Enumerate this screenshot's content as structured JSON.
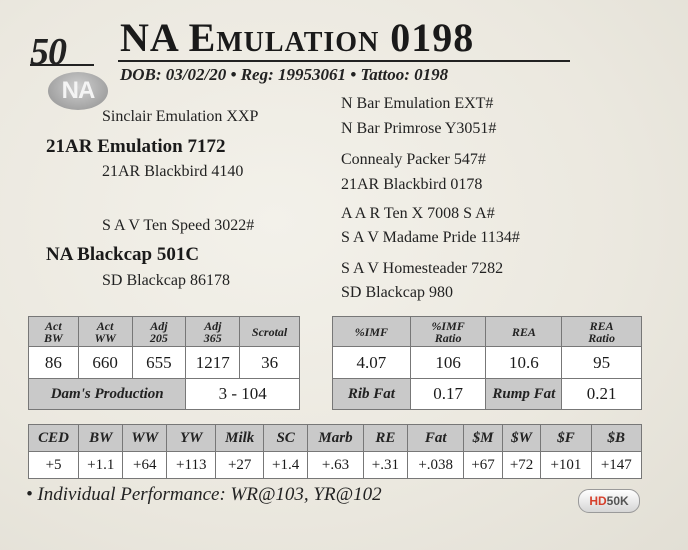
{
  "lot": "50",
  "badge": "NA",
  "name": "NA Emulation 0198",
  "subtitle": "DOB: 03/02/20  •  Reg: 19953061  • Tattoo: 0198",
  "pedigree": {
    "sire": "21AR Emulation 7172",
    "sire_sire": "Sinclair Emulation XXP",
    "sire_dam": "21AR Blackbird 4140",
    "dam": "NA Blackcap 501C",
    "dam_sire": "S A V Ten Speed 3022#",
    "dam_dam": "SD Blackcap 86178",
    "sss": "N Bar Emulation EXT#",
    "ssd": "N Bar Primrose Y3051#",
    "sds": "Connealy Packer 547#",
    "sdd": "21AR Blackbird 0178",
    "dss": "A A R Ten X 7008 S A#",
    "dsd": "S A V Madame Pride 1134#",
    "dds": "S A V Homesteader 7282",
    "ddd": "SD Blackcap 980"
  },
  "actual_table": {
    "headers": [
      "Act\nBW",
      "Act\nWW",
      "Adj\n205",
      "Adj\n365",
      "Scrotal"
    ],
    "values": [
      "86",
      "660",
      "655",
      "1217",
      "36"
    ],
    "dams_production_label": "Dam's Production",
    "dams_production_value": "3 - 104"
  },
  "carcass_table": {
    "headers": [
      "%IMF",
      "%IMF\nRatio",
      "REA",
      "REA\nRatio"
    ],
    "values": [
      "4.07",
      "106",
      "10.6",
      "95"
    ],
    "rib_fat_label": "Rib Fat",
    "rib_fat_value": "0.17",
    "rump_fat_label": "Rump Fat",
    "rump_fat_value": "0.21"
  },
  "epd_table": {
    "headers": [
      "CED",
      "BW",
      "WW",
      "YW",
      "Milk",
      "SC",
      "Marb",
      "RE",
      "Fat",
      "$M",
      "$W",
      "$F",
      "$B"
    ],
    "values": [
      "+5",
      "+1.1",
      "+64",
      "+113",
      "+27",
      "+1.4",
      "+.63",
      "+.31",
      "+.038",
      "+67",
      "+72",
      "+101",
      "+147"
    ]
  },
  "footnote": "• Individual Performance: WR@103, YR@102",
  "logo": {
    "hd": "HD",
    "rest": "50K"
  }
}
